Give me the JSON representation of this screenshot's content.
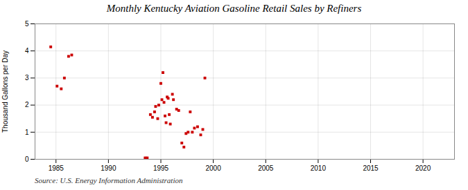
{
  "chart_data": {
    "type": "scatter",
    "title": "Monthly Kentucky Aviation Gasoline Retail Sales by Refiners",
    "ylabel": "Thousand Gallons per Day",
    "source": "Source: U.S. Energy Information Administration",
    "color": "#cc0000",
    "marker": "square",
    "grid": true,
    "xlim": [
      1983,
      2023
    ],
    "ylim": [
      0,
      5
    ],
    "xticks": [
      1985,
      1990,
      1995,
      2000,
      2005,
      2010,
      2015,
      2020
    ],
    "yticks": [
      0,
      1,
      2,
      3,
      4,
      5
    ],
    "x": [
      1984.5,
      1985.1,
      1985.5,
      1985.8,
      1986.2,
      1986.5,
      1993.5,
      1993.7,
      1994.0,
      1994.2,
      1994.4,
      1994.5,
      1994.7,
      1994.8,
      1995.0,
      1995.1,
      1995.2,
      1995.3,
      1995.4,
      1995.5,
      1995.6,
      1995.7,
      1995.8,
      1995.9,
      1996.1,
      1996.2,
      1996.5,
      1996.7,
      1997.0,
      1997.2,
      1997.4,
      1997.6,
      1997.8,
      1998.0,
      1998.2,
      1998.5,
      1998.8,
      1999.0,
      1999.2
    ],
    "values": [
      4.15,
      2.7,
      2.6,
      3.0,
      3.8,
      3.85,
      0.05,
      0.05,
      1.65,
      1.55,
      1.75,
      1.95,
      1.5,
      2.0,
      2.8,
      2.2,
      3.2,
      2.1,
      1.6,
      1.35,
      2.3,
      2.25,
      1.65,
      1.3,
      2.4,
      2.2,
      1.85,
      1.8,
      0.6,
      0.45,
      0.95,
      1.0,
      1.75,
      1.0,
      1.15,
      1.2,
      0.9,
      1.1,
      3.0
    ]
  }
}
